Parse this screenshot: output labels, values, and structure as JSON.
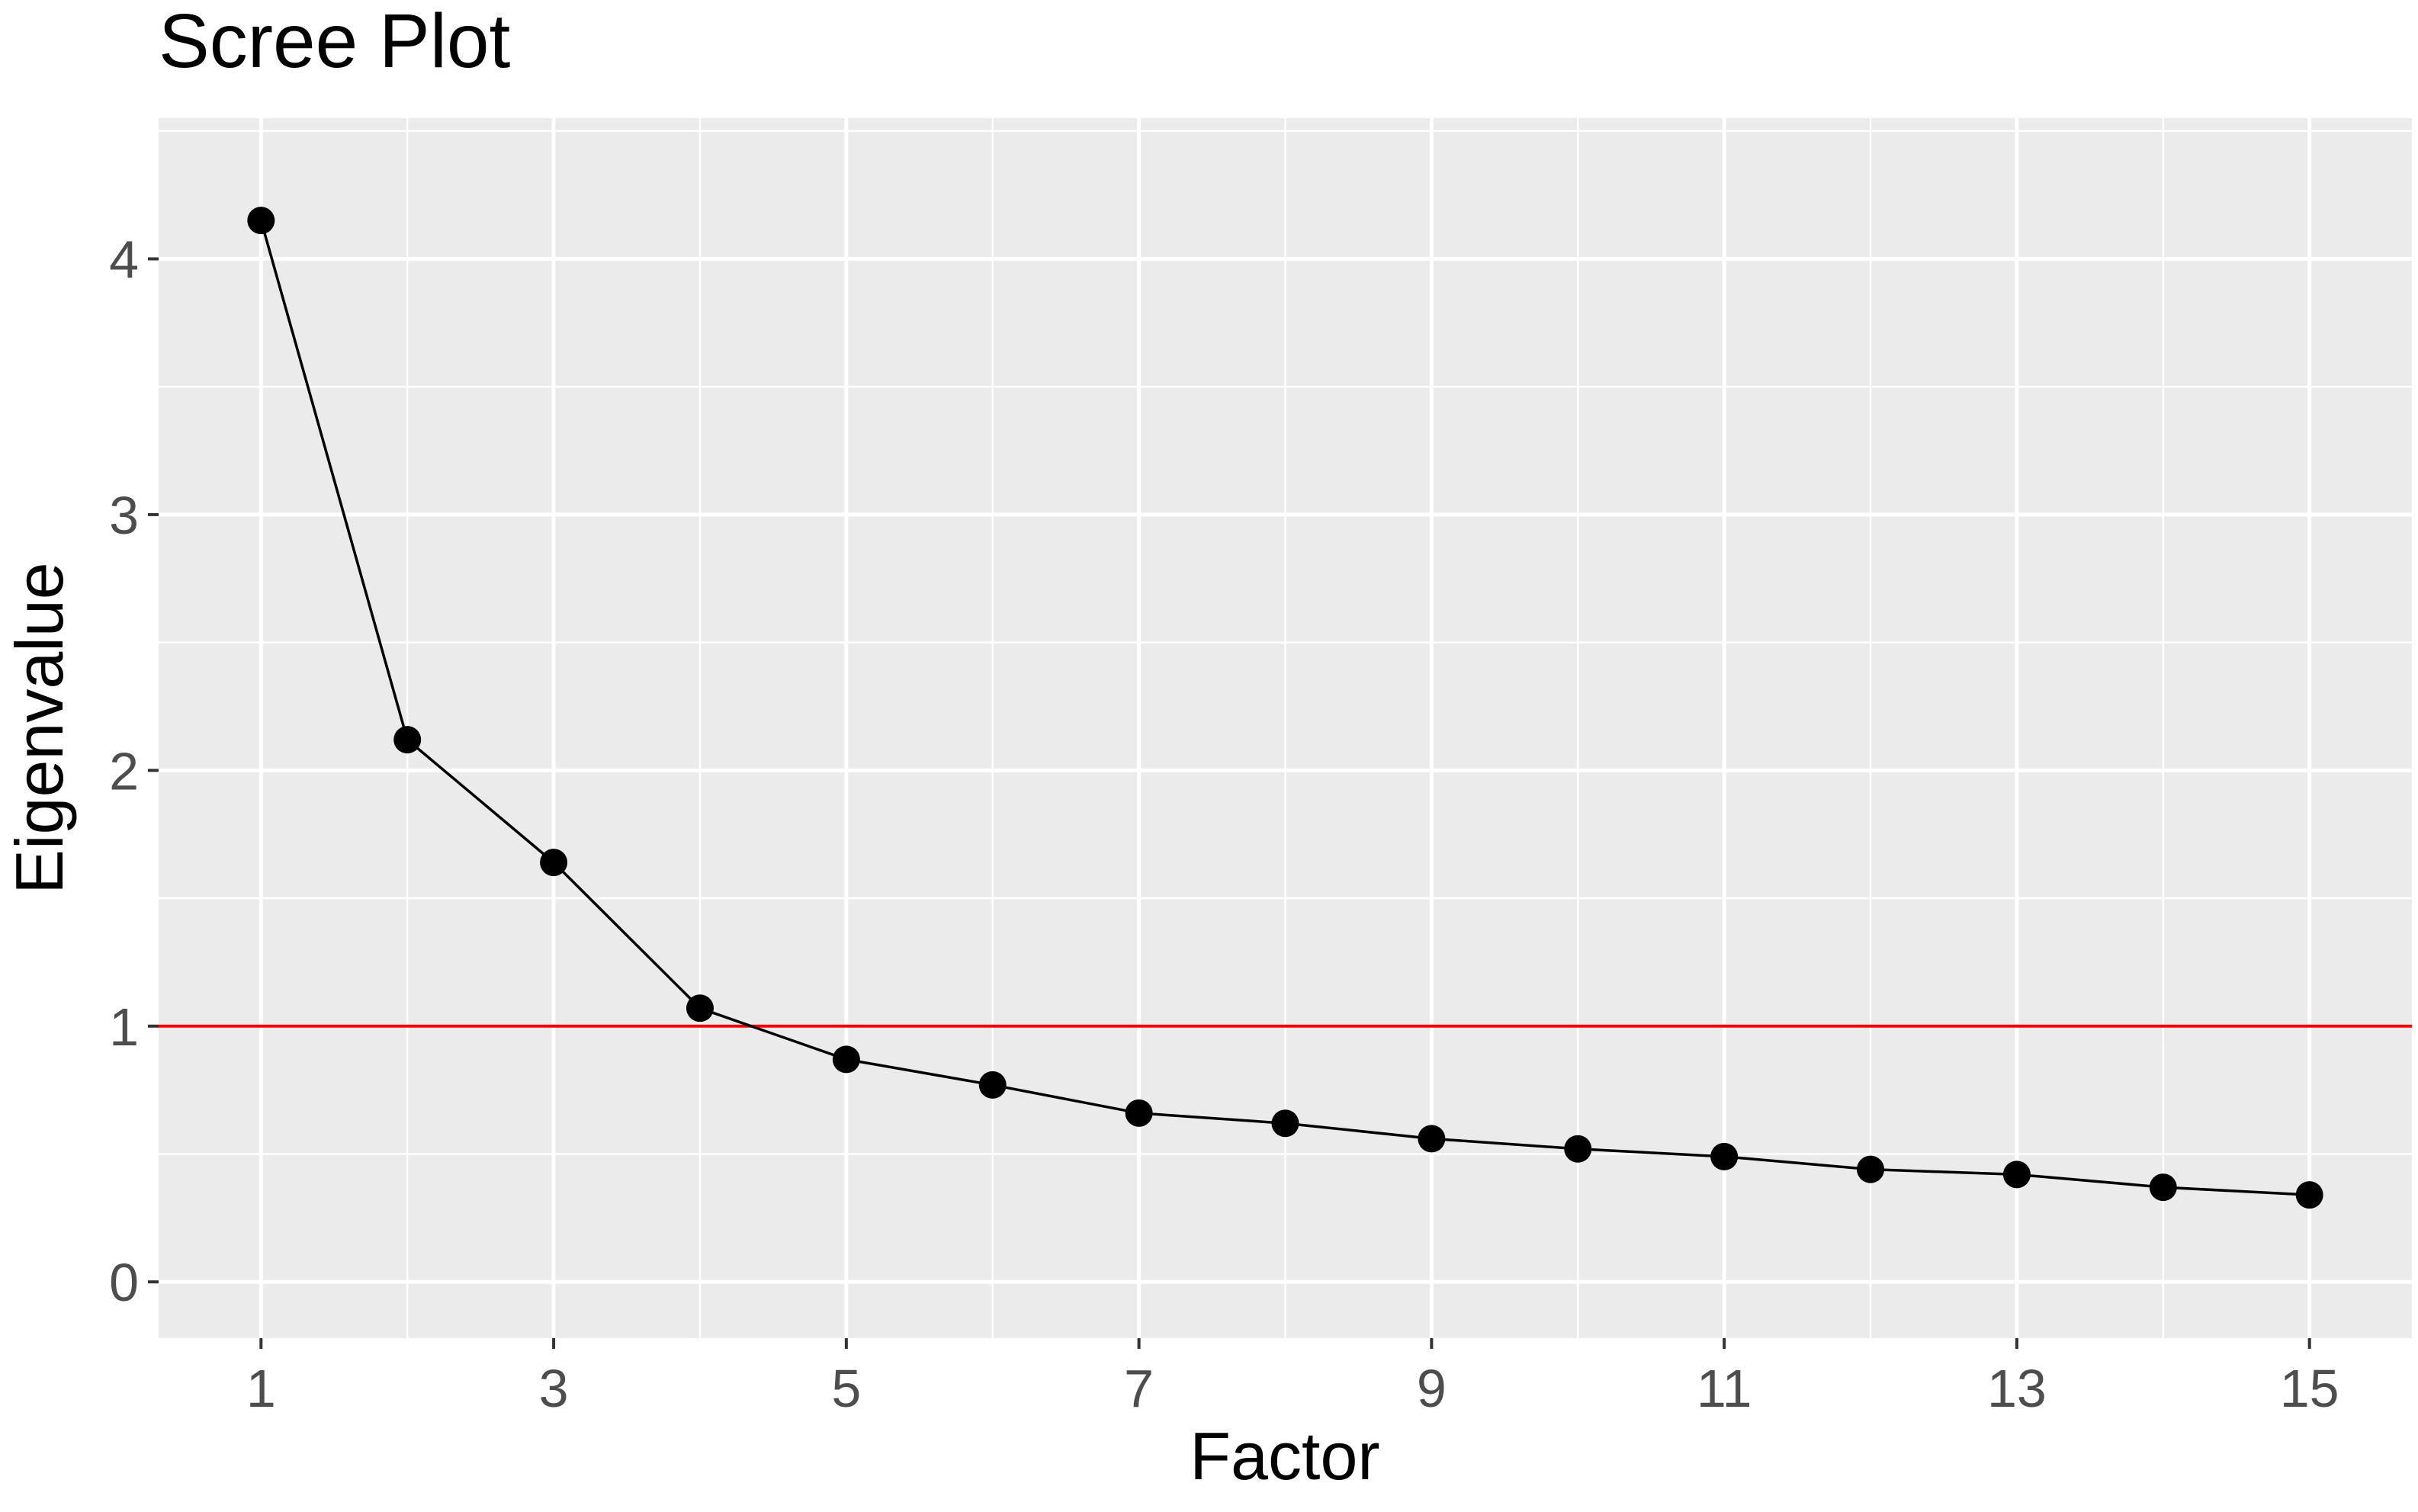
{
  "chart_data": {
    "type": "line",
    "title": "Scree Plot",
    "xlabel": "Factor",
    "ylabel": "Eigenvalue",
    "x": [
      1,
      2,
      3,
      4,
      5,
      6,
      7,
      8,
      9,
      10,
      11,
      12,
      13,
      14,
      15
    ],
    "series": [
      {
        "values": [
          4.15,
          2.12,
          1.64,
          1.07,
          0.87,
          0.77,
          0.66,
          0.62,
          0.56,
          0.52,
          0.49,
          0.44,
          0.42,
          0.37,
          0.34
        ],
        "color": "#000000",
        "markers": true
      }
    ],
    "reference_line": {
      "y": 1,
      "color": "#ff0000"
    },
    "xlim": [
      0.3,
      15.7
    ],
    "ylim": [
      -0.22,
      4.55
    ],
    "xticks": [
      "1",
      "3",
      "5",
      "7",
      "9",
      "11",
      "13",
      "15"
    ],
    "yticks": [
      "0",
      "1",
      "2",
      "3",
      "4"
    ],
    "grid": true,
    "panel_background": "#ebebeb",
    "legend": "none"
  }
}
